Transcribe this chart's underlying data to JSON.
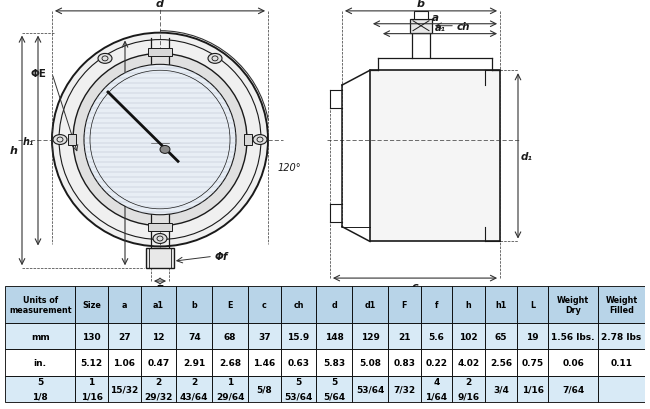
{
  "bg_color": "#ffffff",
  "drawing_color": "#1a1a1a",
  "dim_color": "#333333",
  "line_color": "#222222",
  "hatch_color": "#cccccc",
  "table_header_bg": "#b8d4e8",
  "table_row1_bg": "#d8eaf6",
  "table_row2_bg": "#ffffff",
  "table_row3_bg": "#d8eaf6",
  "table_border_color": "#000000",
  "table_headers": [
    "Units of\nmeasurement",
    "Size",
    "a",
    "a1",
    "b",
    "E",
    "c",
    "ch",
    "d",
    "d1",
    "F",
    "f",
    "h",
    "h1",
    "L",
    "Weight\nDry",
    "Weight\nFilled"
  ],
  "table_row1": [
    "mm",
    "130",
    "27",
    "12",
    "74",
    "68",
    "37",
    "15.9",
    "148",
    "129",
    "21",
    "5.6",
    "102",
    "65",
    "19",
    "1.56 lbs.",
    "2.78 lbs"
  ],
  "table_row2": [
    "in.",
    "5.12",
    "1.06",
    "0.47",
    "2.91",
    "2.68",
    "1.46",
    "0.63",
    "5.83",
    "5.08",
    "0.83",
    "0.22",
    "4.02",
    "2.56",
    "0.75",
    "0.06",
    "0.11"
  ],
  "table_row3_line1": [
    "5",
    "1",
    "",
    "2",
    "2",
    "1",
    "",
    "5",
    "5",
    "",
    "",
    "4",
    "2",
    "",
    "",
    "",
    ""
  ],
  "table_row3_line2": [
    "1/8",
    "1/16",
    "15/32",
    "29/32",
    "43/64",
    "29/64",
    "5/8",
    "53/64",
    "5/64",
    "53/64",
    "7/32",
    "1/64",
    "9/16",
    "3/4",
    "1/16",
    "7/64",
    ""
  ]
}
